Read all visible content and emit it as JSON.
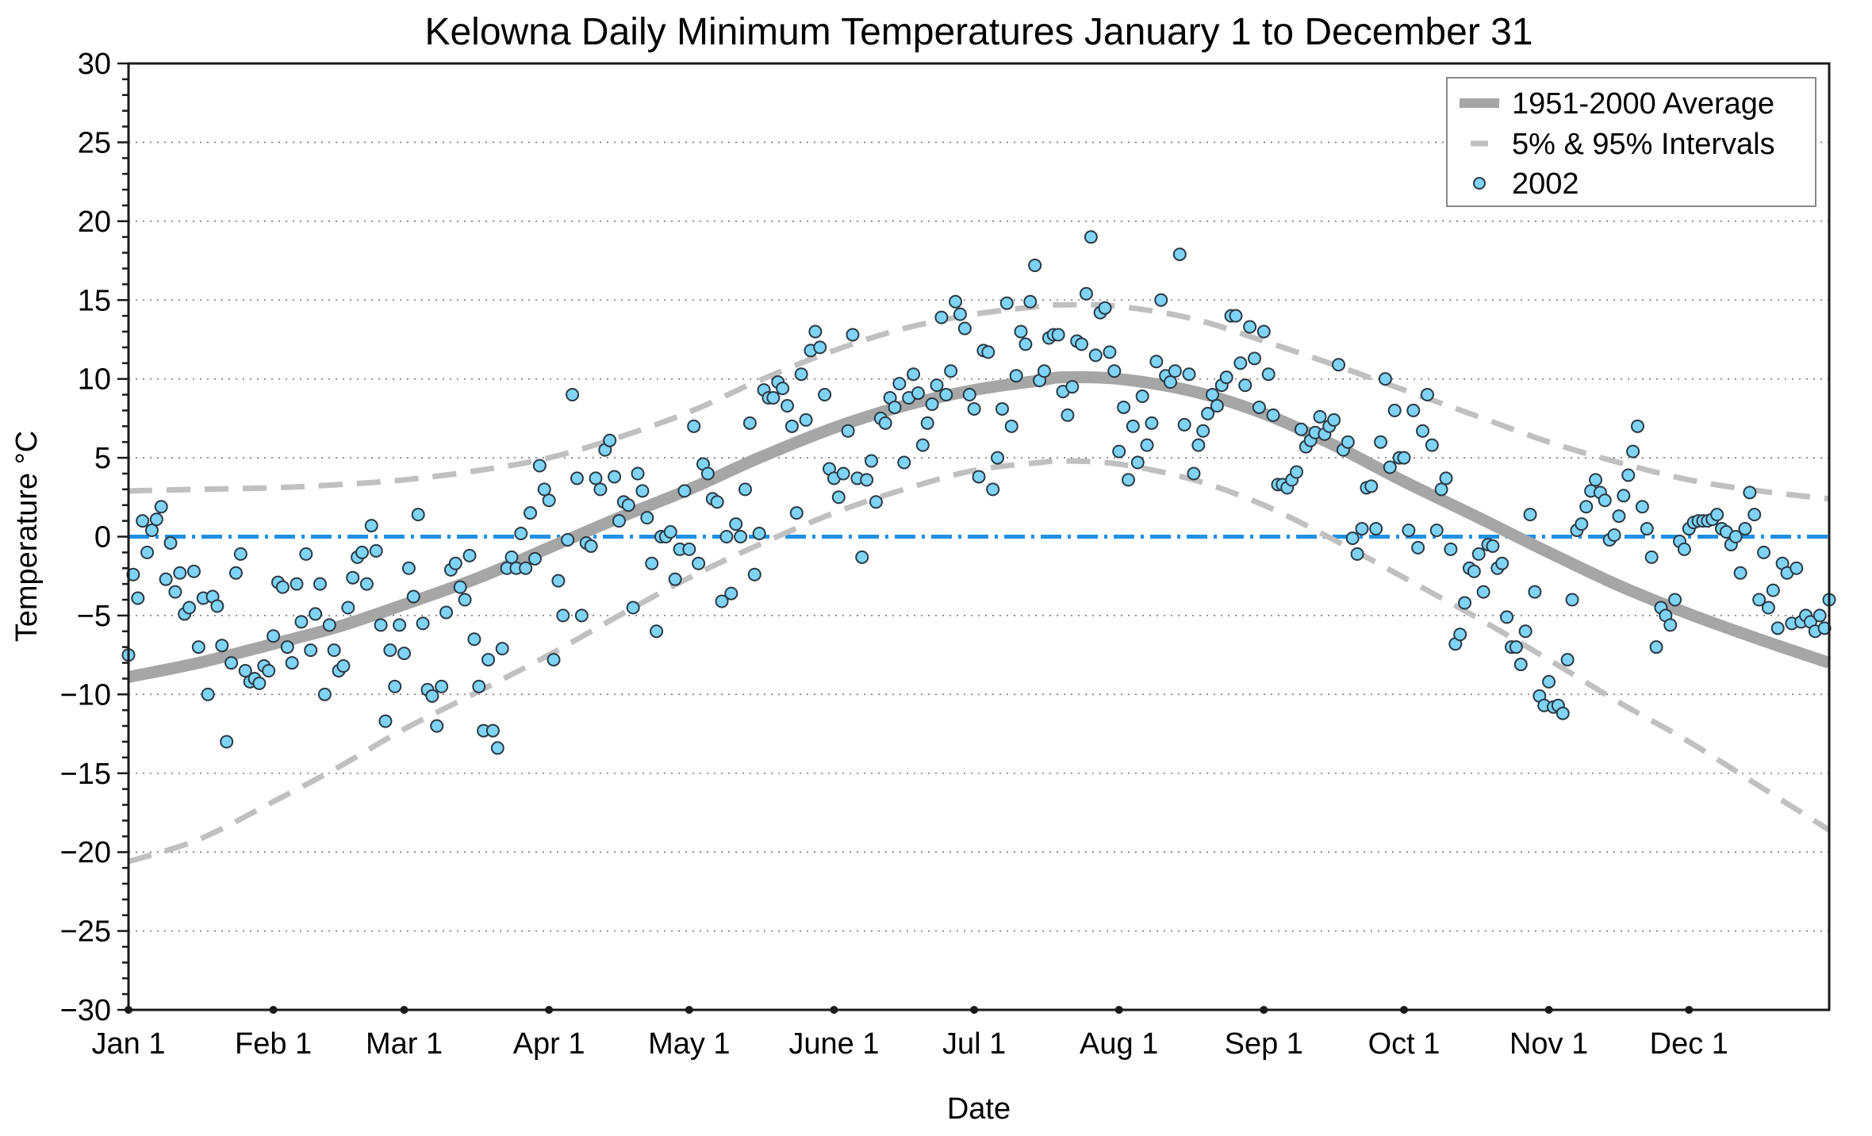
{
  "chart_data": {
    "type": "scatter",
    "title": "Kelowna Daily Minimum Temperatures January 1 to December 31",
    "xlabel": "Date",
    "ylabel": "Temperature °C",
    "xlim": [
      0,
      364
    ],
    "ylim": [
      -30,
      30
    ],
    "x_unit": "day of year (0 = Jan 1)",
    "grid": "horizontal dotted",
    "legend_position": "top-right",
    "y_ticks": [
      30,
      25,
      20,
      15,
      10,
      5,
      0,
      -5,
      -10,
      -15,
      -20,
      -25,
      -30
    ],
    "y_tick_labels": [
      "30",
      "25",
      "20",
      "15",
      "10",
      "5",
      "0",
      "−5",
      "−10",
      "−15",
      "−20",
      "−25",
      "−30"
    ],
    "x_ticks": [
      0,
      31,
      59,
      90,
      120,
      151,
      181,
      212,
      243,
      273,
      304,
      334
    ],
    "x_tick_labels": [
      "Jan 1",
      "Feb 1",
      "Mar 1",
      "Apr 1",
      "May 1",
      "June 1",
      "Jul 1",
      "Aug 1",
      "Sep 1",
      "Oct 1",
      "Nov 1",
      "Dec 1"
    ],
    "reference_line": {
      "value": 0,
      "color": "#1e90e6",
      "style": "dash-dot"
    },
    "legend": [
      {
        "label": "1951-2000 Average",
        "kind": "thick-line",
        "color": "#a6a6a6"
      },
      {
        "label": "5% & 95% Intervals",
        "kind": "dashed-line",
        "color": "#c0c0c0"
      },
      {
        "label": "2002",
        "kind": "marker",
        "color": "#7fd3f7"
      }
    ],
    "series": [
      {
        "name": "1951-2000 Average",
        "type": "line",
        "color": "#a6a6a6",
        "x": [
          0,
          15,
          31,
          45,
          59,
          75,
          90,
          105,
          120,
          135,
          151,
          166,
          181,
          195,
          200,
          212,
          228,
          243,
          258,
          273,
          289,
          304,
          319,
          334,
          349,
          364
        ],
        "y": [
          -8.9,
          -8.0,
          -6.8,
          -5.7,
          -4.3,
          -2.6,
          -0.7,
          1.2,
          3.0,
          5.0,
          6.9,
          8.3,
          9.3,
          9.9,
          10.1,
          10.0,
          9.2,
          7.8,
          5.8,
          3.5,
          1.2,
          -1.0,
          -3.1,
          -4.9,
          -6.5,
          -8.0
        ]
      },
      {
        "name": "95% Interval",
        "type": "line",
        "color": "#c0c0c0",
        "x": [
          0,
          15,
          31,
          45,
          59,
          75,
          90,
          105,
          120,
          135,
          151,
          166,
          181,
          195,
          200,
          212,
          228,
          243,
          258,
          273,
          289,
          304,
          319,
          334,
          349,
          364
        ],
        "y": [
          2.9,
          3.0,
          3.1,
          3.3,
          3.6,
          4.2,
          5.0,
          6.3,
          7.9,
          9.9,
          11.8,
          13.2,
          14.1,
          14.6,
          14.7,
          14.6,
          13.8,
          12.4,
          10.9,
          9.3,
          7.6,
          6.0,
          4.7,
          3.6,
          2.9,
          2.4
        ]
      },
      {
        "name": "5% Interval",
        "type": "line",
        "color": "#c0c0c0",
        "x": [
          0,
          15,
          31,
          45,
          59,
          75,
          90,
          105,
          120,
          135,
          151,
          166,
          181,
          195,
          200,
          212,
          228,
          243,
          258,
          273,
          289,
          304,
          319,
          334,
          349,
          364
        ],
        "y": [
          -20.6,
          -19.2,
          -16.8,
          -14.6,
          -12.2,
          -9.8,
          -7.5,
          -5.0,
          -2.6,
          -0.5,
          1.5,
          3.0,
          4.2,
          4.7,
          4.8,
          4.6,
          3.6,
          2.0,
          -0.2,
          -2.6,
          -5.2,
          -7.8,
          -10.5,
          -13.0,
          -15.8,
          -18.6
        ]
      },
      {
        "name": "2002",
        "type": "scatter",
        "color": "#7fd3f7",
        "y": [
          -7.5,
          -2.4,
          -3.9,
          1.0,
          -1.0,
          0.4,
          1.1,
          1.9,
          -2.7,
          -0.4,
          -3.5,
          -2.3,
          -4.9,
          -4.5,
          -2.2,
          -7.0,
          -3.9,
          -10.0,
          -3.8,
          -4.4,
          -6.9,
          -13.0,
          -8.0,
          -2.3,
          -1.1,
          -8.5,
          -9.2,
          -9.0,
          -9.3,
          -8.2,
          -8.5,
          -6.3,
          -2.9,
          -3.2,
          -7.0,
          -8.0,
          -3.0,
          -5.4,
          -1.1,
          -7.2,
          -4.9,
          -3.0,
          -10.0,
          -5.6,
          -7.2,
          -8.5,
          -8.2,
          -4.5,
          -2.6,
          -1.3,
          -1.0,
          -3.0,
          0.7,
          -0.9,
          -5.6,
          -11.7,
          -7.2,
          -9.5,
          -5.6,
          -7.4,
          -2.0,
          -3.8,
          1.4,
          -5.5,
          -9.7,
          -10.1,
          -12.0,
          -9.5,
          -4.8,
          -2.1,
          -1.7,
          -3.2,
          -4.0,
          -1.2,
          -6.5,
          -9.5,
          -12.3,
          -7.8,
          -12.3,
          -13.4,
          -7.1,
          -2.0,
          -1.3,
          -2.0,
          0.2,
          -2.0,
          1.5,
          -1.4,
          4.5,
          3.0,
          2.3,
          -7.8,
          -2.8,
          -5.0,
          -0.2,
          9.0,
          3.7,
          -5.0,
          -0.4,
          -0.6,
          3.7,
          3.0,
          5.5,
          6.1,
          3.8,
          1.0,
          2.2,
          2.0,
          -4.5,
          4.0,
          2.9,
          1.2,
          -1.7,
          -6.0,
          0.0,
          0.0,
          0.3,
          -2.7,
          -0.8,
          2.9,
          -0.8,
          7.0,
          -1.7,
          4.6,
          4.0,
          2.4,
          2.2,
          -4.1,
          0.0,
          -3.6,
          0.8,
          0.0,
          3.0,
          7.2,
          -2.4,
          0.2,
          9.3,
          8.8,
          8.8,
          9.8,
          9.4,
          8.3,
          7.0,
          1.5,
          10.3,
          7.4,
          11.8,
          13.0,
          12.0,
          9.0,
          4.3,
          3.7,
          2.5,
          4.0,
          6.7,
          12.8,
          3.7,
          -1.3,
          3.6,
          4.8,
          2.2,
          7.5,
          7.2,
          8.8,
          8.2,
          9.7,
          4.7,
          8.8,
          10.3,
          9.1,
          5.8,
          7.2,
          8.4,
          9.6,
          13.9,
          9.0,
          10.5,
          14.9,
          14.1,
          13.2,
          9.0,
          8.1,
          3.8,
          11.8,
          11.7,
          3.0,
          5.0,
          8.1,
          14.8,
          7.0,
          10.2,
          13.0,
          12.2,
          14.9,
          17.2,
          9.9,
          10.5,
          12.6,
          12.8,
          12.8,
          9.2,
          7.7,
          9.5,
          12.4,
          12.2,
          15.4,
          19.0,
          11.5,
          14.2,
          14.5,
          11.7,
          10.5,
          5.4,
          8.2,
          3.6,
          7.0,
          4.7,
          8.9,
          5.8,
          7.2,
          11.1,
          15.0,
          10.2,
          9.8,
          10.5,
          17.9,
          7.1,
          10.3,
          4.0,
          5.8,
          6.7,
          7.8,
          9.0,
          8.3,
          9.6,
          10.1,
          14.0,
          14.0,
          11.0,
          9.6,
          13.3,
          11.3,
          8.2,
          13.0,
          10.3,
          7.7,
          3.3,
          3.3,
          3.1,
          3.6,
          4.1,
          6.8,
          5.7,
          6.1,
          6.6,
          7.6,
          6.5,
          7.0,
          7.4,
          10.9,
          5.5,
          6.0,
          -0.1,
          -1.1,
          0.5,
          3.1,
          3.2,
          0.5,
          6.0,
          10.0,
          4.4,
          8.0,
          5.0,
          5.0,
          0.4,
          8.0,
          -0.7,
          6.7,
          9.0,
          5.8,
          0.4,
          3.0,
          3.7,
          -0.8,
          -6.8,
          -6.2,
          -4.2,
          -2.0,
          -2.2,
          -1.1,
          -3.5,
          -0.5,
          -0.6,
          -2.0,
          -1.7,
          -5.1,
          -7.0,
          -7.0,
          -8.1,
          -6.0,
          1.4,
          -3.5,
          -10.1,
          -10.7,
          -9.2,
          -10.8,
          -10.7,
          -11.2,
          -7.8,
          -4.0,
          0.4,
          0.8,
          1.9,
          2.9,
          3.6,
          2.8,
          2.3,
          -0.2,
          0.1,
          1.3,
          2.6,
          3.9,
          5.4,
          7.0,
          1.9,
          0.5,
          -1.3,
          -7.0,
          -4.5,
          -5.0,
          -5.6,
          -4.0,
          -0.3,
          -0.8,
          0.5,
          0.9,
          1.0,
          1.0,
          1.0,
          1.1,
          1.4,
          0.5,
          0.3,
          -0.5,
          0.0,
          -2.3,
          0.5,
          2.8,
          1.4,
          -4.0,
          -1.0,
          -4.5,
          -3.4,
          -5.8,
          -1.7,
          -2.3,
          -5.5,
          -2.0,
          -5.4,
          -5.0,
          -5.4,
          -6.0,
          -5.0,
          -5.8,
          -4.0
        ]
      }
    ]
  }
}
